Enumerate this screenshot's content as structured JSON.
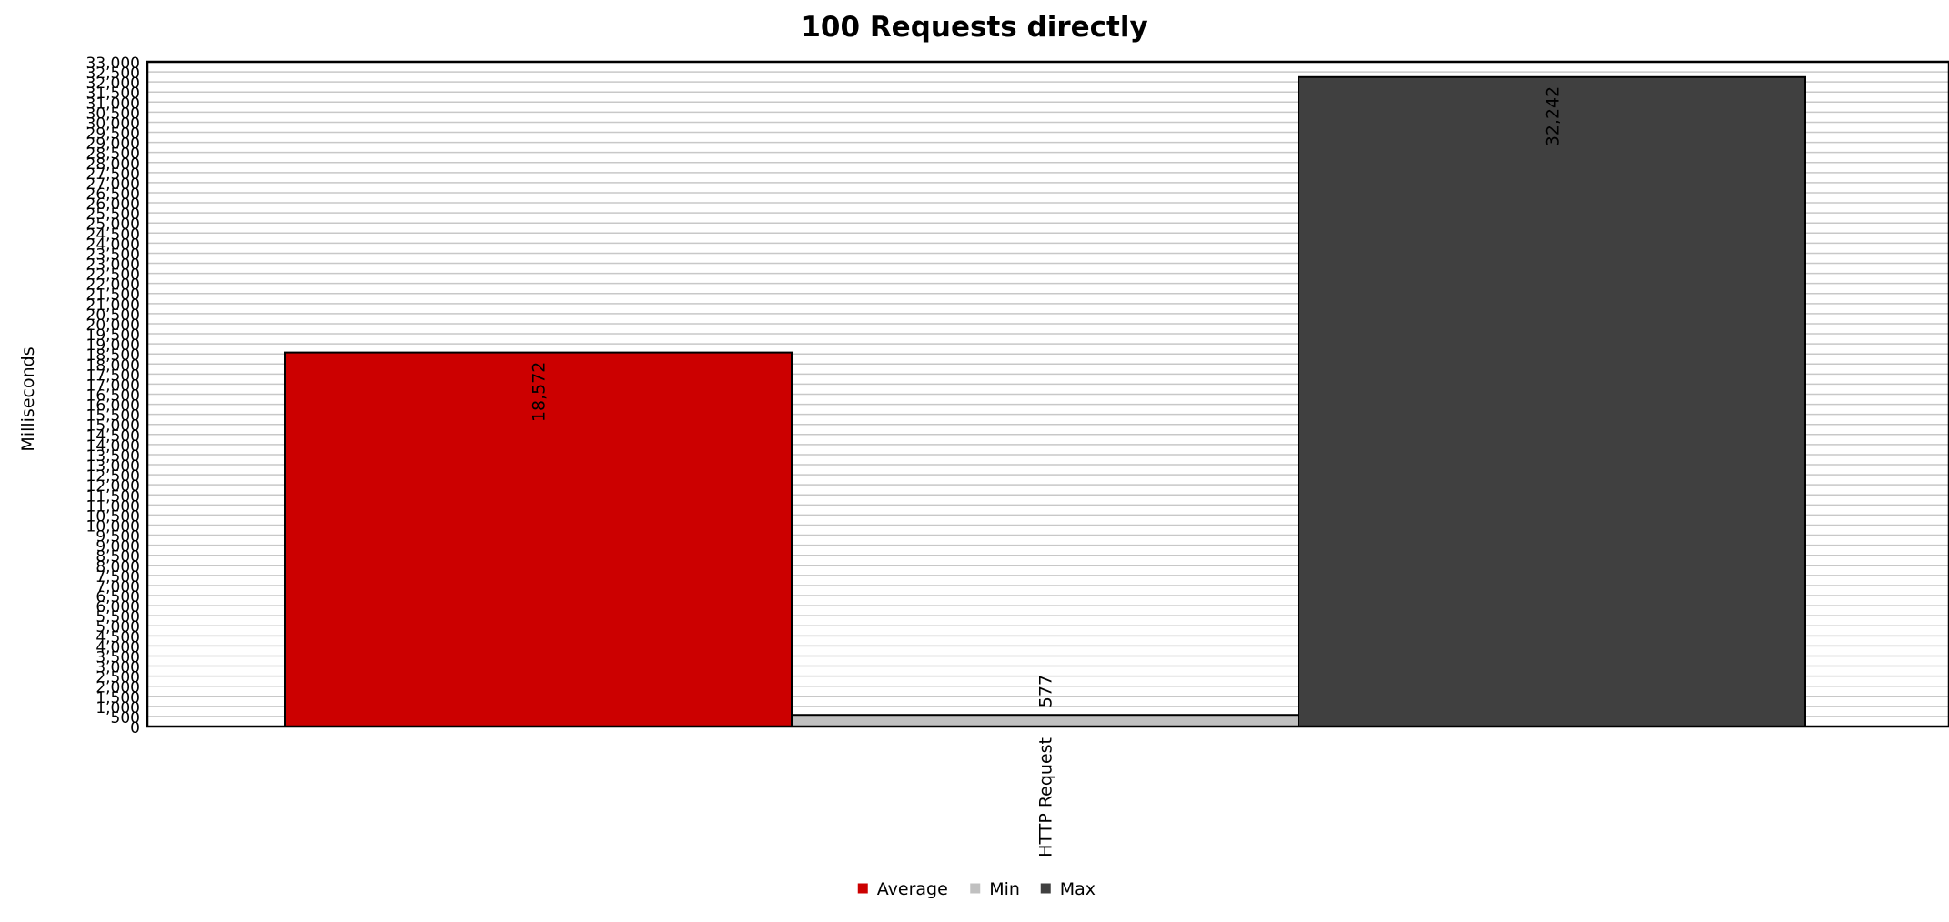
{
  "chart_data": {
    "type": "bar",
    "title": "100 Requests directly",
    "xlabel": "",
    "ylabel": "Milliseconds",
    "categories": [
      "HTTP Request"
    ],
    "series": [
      {
        "name": "Average",
        "values": [
          18572
        ],
        "label": "18,572",
        "color": "#cc0000"
      },
      {
        "name": "Min",
        "values": [
          577
        ],
        "label": "577",
        "color": "#c0c0c0"
      },
      {
        "name": "Max",
        "values": [
          32242
        ],
        "label": "32,242",
        "color": "#404040"
      }
    ],
    "ylim": [
      0,
      33000
    ],
    "ytick_step": 500,
    "grid": true,
    "legend_position": "bottom-center",
    "colors": {
      "grid": "#c8c8c8",
      "plot_border": "#000000",
      "bar_stroke": "#000000"
    }
  }
}
